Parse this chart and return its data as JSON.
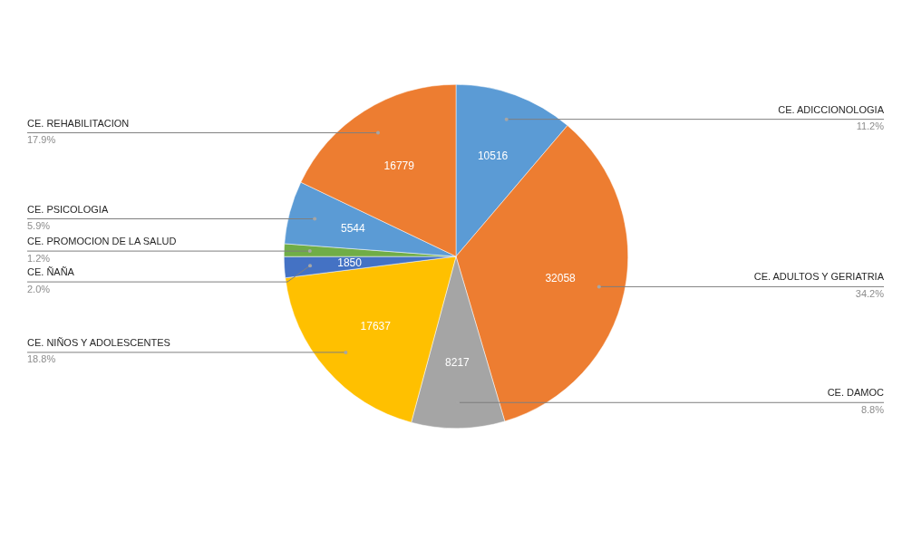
{
  "chart_data": {
    "type": "pie",
    "categories": [
      "CE. ADICCIONOLOGIA",
      "CE. ADULTOS Y GERIATRIA",
      "CE. DAMOC",
      "CE. NIÑOS Y ADOLESCENTES",
      "CE. ÑAÑA",
      "CE. PROMOCION DE LA SALUD",
      "CE. PSICOLOGIA",
      "CE. REHABILITACION"
    ],
    "values": [
      10516,
      32058,
      8217,
      17637,
      1850,
      1125,
      5544,
      16779
    ],
    "colors": [
      "#5b9bd5",
      "#ed7d31",
      "#a5a5a5",
      "#ffc000",
      "#4472c4",
      "#70ad47",
      "#5b9bd5",
      "#ed7d31"
    ],
    "value_labels": [
      "10516",
      "32058",
      "8217",
      "17637",
      "1850",
      null,
      "5544",
      "16779"
    ],
    "annotations": [
      "11.2%",
      "34.2%",
      "8.8%",
      "18.8%",
      "2.0%",
      "1.2%",
      "5.9%",
      "17.9%"
    ]
  }
}
